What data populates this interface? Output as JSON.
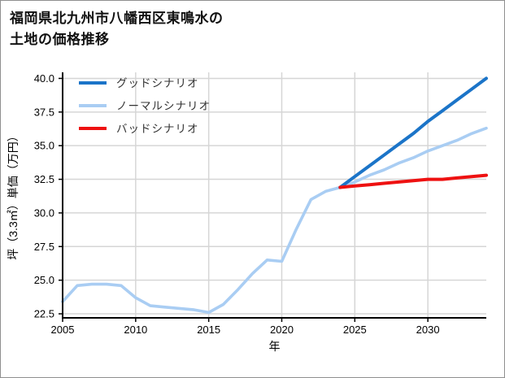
{
  "window": {
    "background": "#ffffff",
    "border_color": "#8f8f8f"
  },
  "title": {
    "line1": "福岡県北九州市八幡西区東鳴水の",
    "line2": "土地の価格推移"
  },
  "chart_data": {
    "type": "line",
    "title": "福岡県北九州市八幡西区東鳴水の土地の価格推移",
    "xlabel": "年",
    "ylabel": "坪（3.3㎡）単価（万円）",
    "xlim": [
      2005,
      2034
    ],
    "ylim": [
      22.2,
      40.45
    ],
    "x_ticks": [
      2005,
      2010,
      2015,
      2020,
      2025,
      2030
    ],
    "y_ticks": [
      22.5,
      25.0,
      27.5,
      30.0,
      32.5,
      35.0,
      37.5,
      40.0
    ],
    "y_tick_decimals": 1,
    "grid": true,
    "grid_color": "#d6d6d6",
    "spine_color": "#000000",
    "legend_position": "upper-left-inside",
    "series": [
      {
        "name": "グッドシナリオ",
        "slug": "good-scenario",
        "color": "#1b74c8",
        "line_width": 4,
        "x": [
          2024,
          2025,
          2026,
          2027,
          2028,
          2029,
          2030,
          2031,
          2032,
          2033,
          2034
        ],
        "values": [
          31.9,
          32.7,
          33.5,
          34.3,
          35.1,
          35.9,
          36.8,
          37.6,
          38.4,
          39.2,
          40.0
        ]
      },
      {
        "name": "ノーマルシナリオ",
        "slug": "normal-scenario",
        "color": "#a9cdf3",
        "line_width": 3.6,
        "x": [
          2005,
          2006,
          2007,
          2008,
          2009,
          2010,
          2011,
          2012,
          2013,
          2014,
          2015,
          2016,
          2017,
          2018,
          2019,
          2020,
          2021,
          2022,
          2023,
          2024,
          2025,
          2026,
          2027,
          2028,
          2029,
          2030,
          2031,
          2032,
          2033,
          2034
        ],
        "values": [
          23.4,
          24.6,
          24.7,
          24.7,
          24.6,
          23.7,
          23.1,
          23.0,
          22.9,
          22.8,
          22.6,
          23.2,
          24.3,
          25.5,
          26.5,
          26.4,
          28.8,
          31.0,
          31.6,
          31.9,
          32.3,
          32.8,
          33.2,
          33.7,
          34.1,
          34.6,
          35.0,
          35.4,
          35.9,
          36.3
        ]
      },
      {
        "name": "バッドシナリオ",
        "slug": "bad-scenario",
        "color": "#ee1111",
        "line_width": 4,
        "x": [
          2024,
          2025,
          2026,
          2027,
          2028,
          2029,
          2030,
          2031,
          2032,
          2033,
          2034
        ],
        "values": [
          31.9,
          32.0,
          32.1,
          32.2,
          32.3,
          32.4,
          32.5,
          32.5,
          32.6,
          32.7,
          32.8
        ]
      }
    ]
  }
}
